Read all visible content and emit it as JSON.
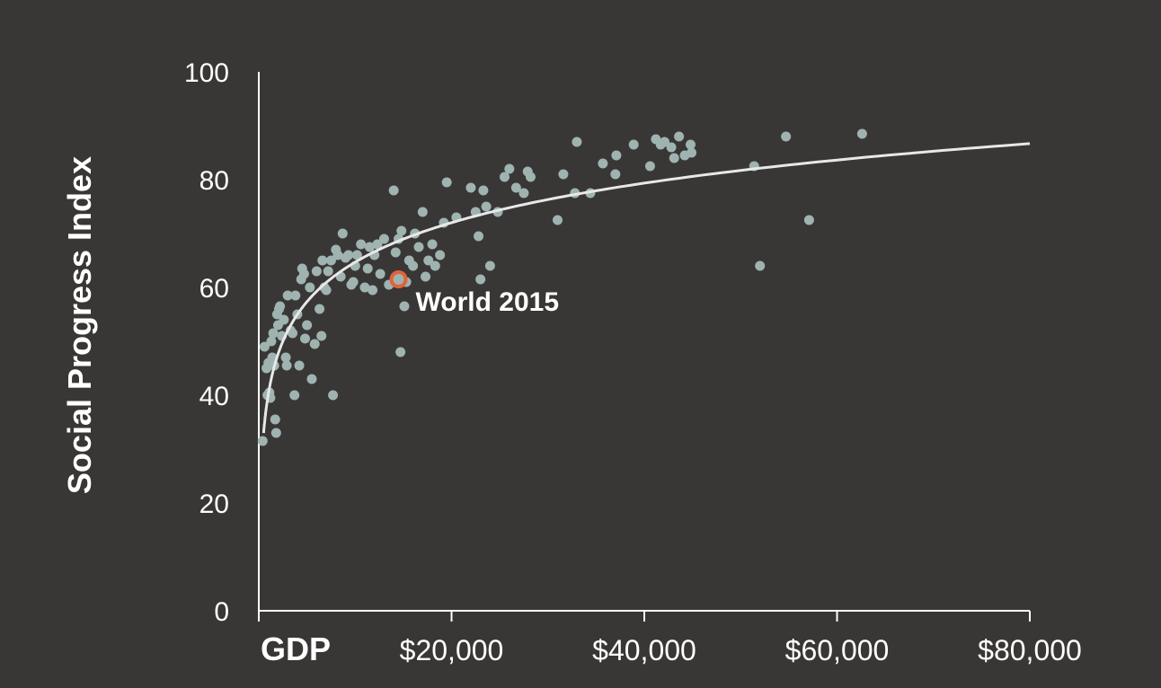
{
  "chart_data": {
    "type": "scatter",
    "xlabel": "GDP",
    "ylabel": "Social Progress Index",
    "xlim": [
      0,
      80000
    ],
    "ylim": [
      0,
      100
    ],
    "x_ticks": [
      {
        "value": 20000,
        "label": "$20,000"
      },
      {
        "value": 40000,
        "label": "$40,000"
      },
      {
        "value": 60000,
        "label": "$60,000"
      },
      {
        "value": 80000,
        "label": "$80,000"
      }
    ],
    "y_ticks": [
      {
        "value": 0,
        "label": "0"
      },
      {
        "value": 20,
        "label": "20"
      },
      {
        "value": 40,
        "label": "40"
      },
      {
        "value": 60,
        "label": "60"
      },
      {
        "value": 80,
        "label": "80"
      },
      {
        "value": 100,
        "label": "100"
      }
    ],
    "grid": false,
    "colors": {
      "background": "#393735",
      "points": "#9fb3b0",
      "trend": "#e8e8e8",
      "highlight": "#e0633a",
      "axis": "#ffffff"
    },
    "points": [
      [
        400,
        31.5
      ],
      [
        600,
        49
      ],
      [
        800,
        45
      ],
      [
        900,
        40
      ],
      [
        1000,
        46
      ],
      [
        1100,
        40.5
      ],
      [
        1200,
        39.5
      ],
      [
        1300,
        50
      ],
      [
        1400,
        47
      ],
      [
        1500,
        51.5
      ],
      [
        1600,
        45.5
      ],
      [
        1700,
        35.5
      ],
      [
        1800,
        33
      ],
      [
        1900,
        55
      ],
      [
        2000,
        53
      ],
      [
        2100,
        56
      ],
      [
        2200,
        56.5
      ],
      [
        2400,
        51
      ],
      [
        2600,
        54
      ],
      [
        2800,
        47
      ],
      [
        2900,
        45.5
      ],
      [
        3000,
        58.5
      ],
      [
        3300,
        52
      ],
      [
        3500,
        51.5
      ],
      [
        3700,
        40
      ],
      [
        3800,
        58.5
      ],
      [
        4000,
        55
      ],
      [
        4200,
        45.5
      ],
      [
        4400,
        61.5
      ],
      [
        4500,
        63.5
      ],
      [
        4700,
        62.5
      ],
      [
        4800,
        50.5
      ],
      [
        5000,
        53
      ],
      [
        5300,
        60
      ],
      [
        5500,
        43
      ],
      [
        5800,
        49.5
      ],
      [
        6000,
        63
      ],
      [
        6300,
        56
      ],
      [
        6500,
        51
      ],
      [
        6600,
        65
      ],
      [
        6800,
        60
      ],
      [
        7000,
        59.5
      ],
      [
        7200,
        63
      ],
      [
        7500,
        65
      ],
      [
        7700,
        40
      ],
      [
        8000,
        67
      ],
      [
        8200,
        66
      ],
      [
        8500,
        62
      ],
      [
        8700,
        70
      ],
      [
        9000,
        65.5
      ],
      [
        9300,
        66
      ],
      [
        9600,
        60.5
      ],
      [
        9800,
        61
      ],
      [
        10000,
        64
      ],
      [
        10200,
        66
      ],
      [
        10600,
        68
      ],
      [
        11000,
        60
      ],
      [
        11300,
        63.5
      ],
      [
        11500,
        67.5
      ],
      [
        11800,
        59.5
      ],
      [
        12000,
        66
      ],
      [
        12300,
        68
      ],
      [
        12600,
        62.5
      ],
      [
        13000,
        69
      ],
      [
        13500,
        60.5
      ],
      [
        14000,
        78
      ],
      [
        14200,
        66.5
      ],
      [
        14500,
        69
      ],
      [
        14700,
        48
      ],
      [
        14800,
        70.5
      ],
      [
        15100,
        56.5
      ],
      [
        15300,
        61
      ],
      [
        15600,
        65
      ],
      [
        16000,
        64
      ],
      [
        16200,
        70
      ],
      [
        16600,
        67.5
      ],
      [
        17000,
        74
      ],
      [
        17300,
        62
      ],
      [
        17600,
        65
      ],
      [
        18000,
        68
      ],
      [
        18300,
        64
      ],
      [
        18800,
        66
      ],
      [
        19200,
        72
      ],
      [
        19500,
        79.5
      ],
      [
        20500,
        73
      ],
      [
        22000,
        78.5
      ],
      [
        22500,
        74
      ],
      [
        22800,
        69.5
      ],
      [
        23000,
        61.5
      ],
      [
        23300,
        78
      ],
      [
        23600,
        75
      ],
      [
        24000,
        64
      ],
      [
        24800,
        74
      ],
      [
        25500,
        80.5
      ],
      [
        26000,
        82
      ],
      [
        26700,
        78.5
      ],
      [
        27500,
        77.5
      ],
      [
        27900,
        81.5
      ],
      [
        28200,
        80.5
      ],
      [
        31000,
        72.5
      ],
      [
        31600,
        81
      ],
      [
        32800,
        77.5
      ],
      [
        33000,
        87
      ],
      [
        34400,
        77.5
      ],
      [
        35700,
        83
      ],
      [
        37000,
        81
      ],
      [
        37100,
        84.5
      ],
      [
        38900,
        86.5
      ],
      [
        40600,
        82.5
      ],
      [
        41200,
        87.5
      ],
      [
        41700,
        86.5
      ],
      [
        42100,
        87
      ],
      [
        42800,
        86
      ],
      [
        43100,
        84
      ],
      [
        43600,
        88
      ],
      [
        44200,
        84.5
      ],
      [
        44800,
        86.5
      ],
      [
        44900,
        85
      ],
      [
        51400,
        82.5
      ],
      [
        52000,
        64
      ],
      [
        54700,
        88
      ],
      [
        57100,
        72.5
      ],
      [
        62600,
        88.5
      ]
    ],
    "trendline": {
      "type": "logarithmic"
    },
    "highlight": {
      "x": 14500,
      "y": 61.5,
      "label": "World 2015"
    }
  }
}
